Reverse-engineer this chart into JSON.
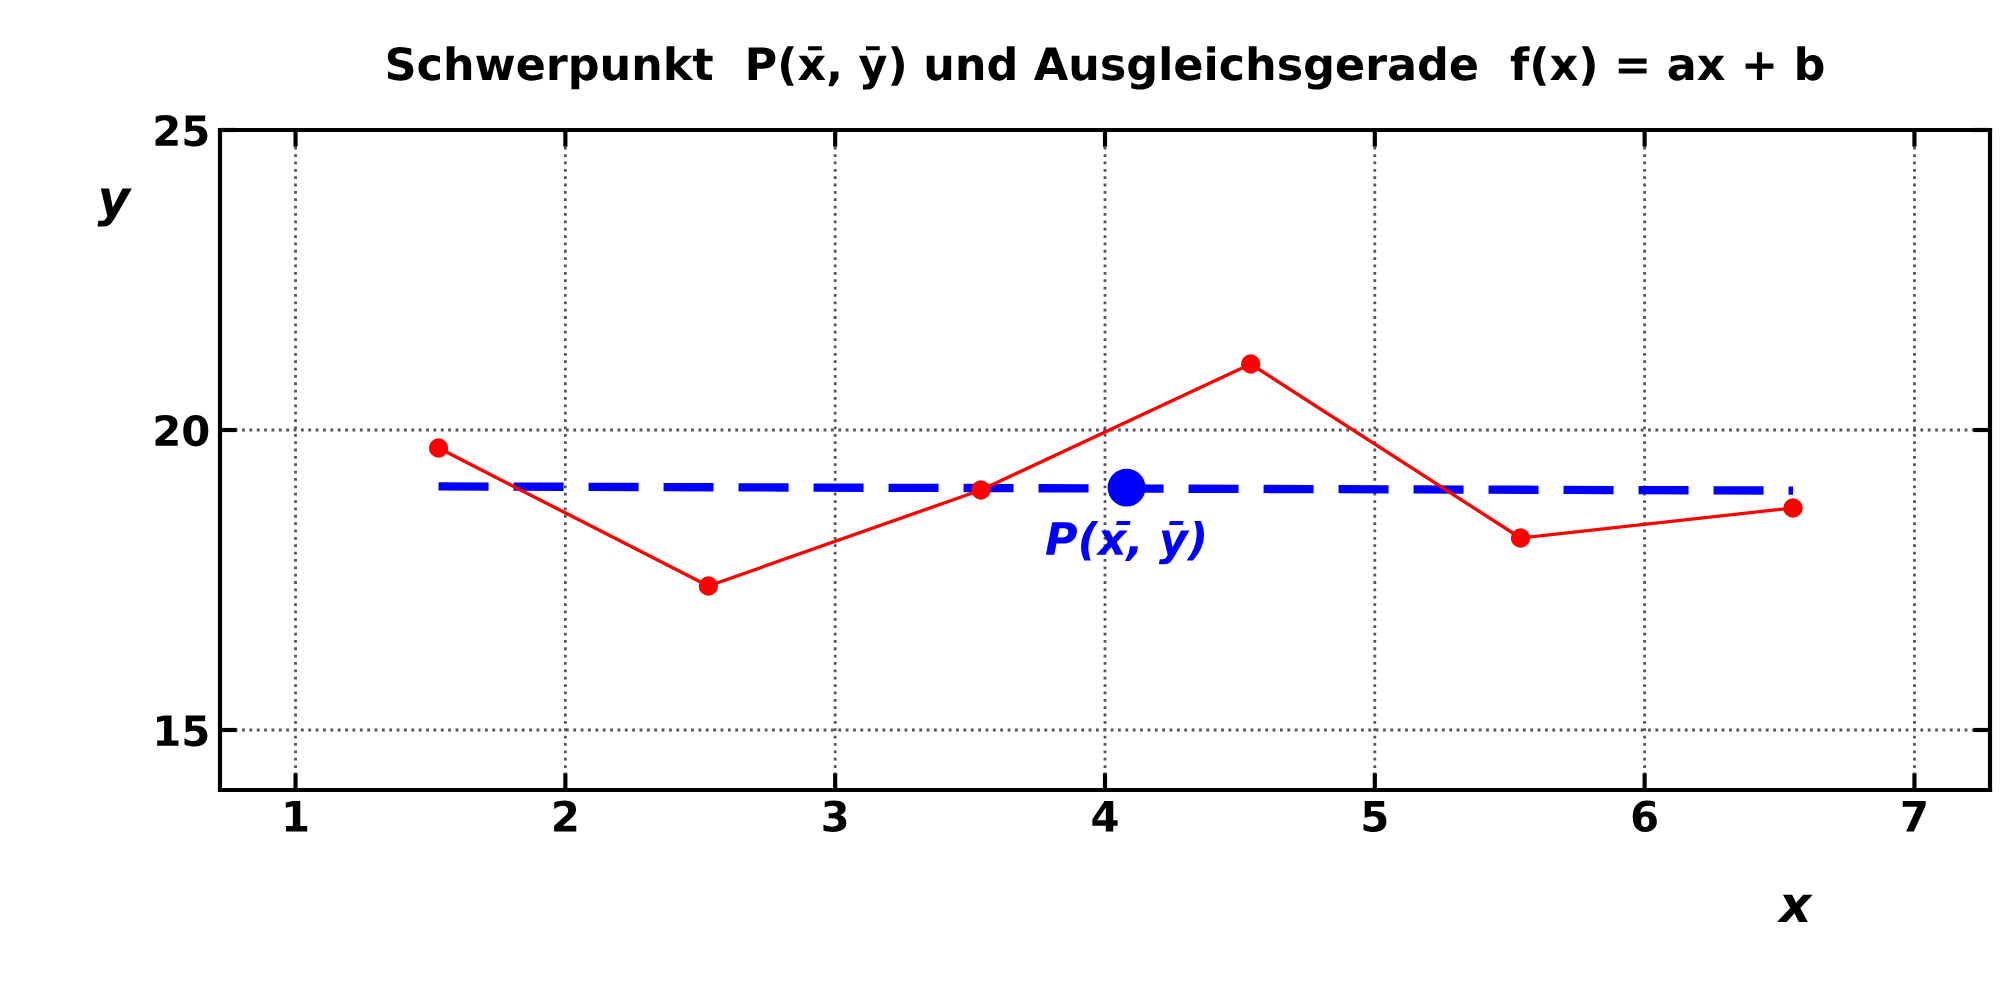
{
  "chart_data": {
    "type": "line",
    "title": "Schwerpunkt  P(x̄, ȳ) und Ausgleichsgerade  f(x) = ax + b",
    "xlabel": "x",
    "ylabel": "y",
    "xlim": [
      0.72,
      7.28
    ],
    "ylim": [
      14,
      25
    ],
    "xticks": [
      1,
      2,
      3,
      4,
      5,
      6,
      7
    ],
    "yticks": [
      15,
      20,
      25
    ],
    "grid": true,
    "series": [
      {
        "color": "#ff0000",
        "marker": "circle",
        "line_style": "solid",
        "x": [
          1.53,
          2.53,
          3.54,
          4.54,
          5.54,
          6.55
        ],
        "values": [
          19.7,
          17.4,
          19.0,
          21.1,
          18.2,
          18.7
        ]
      },
      {
        "type": "line",
        "color": "#0000ff",
        "marker": "none",
        "line_style": "dashed",
        "x": [
          1.53,
          6.55
        ],
        "values": [
          19.06,
          18.99
        ]
      },
      {
        "type": "scatter",
        "color": "#0000ff",
        "marker": "circle",
        "x": [
          4.08
        ],
        "values": [
          19.04
        ]
      }
    ],
    "annotations": [
      {
        "text": "P(x̄, ȳ)",
        "x": 4.08,
        "y": 19.04
      }
    ]
  }
}
